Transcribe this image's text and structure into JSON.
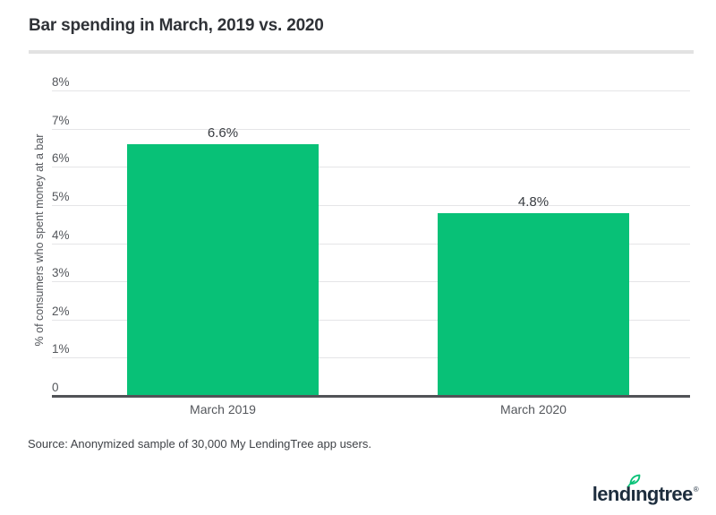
{
  "header": {
    "title": "Bar spending in March, 2019 vs. 2020"
  },
  "chart_data": {
    "type": "bar",
    "title": "Bar spending in March, 2019 vs. 2020",
    "categories": [
      "March 2019",
      "March 2020"
    ],
    "values": [
      6.6,
      4.8
    ],
    "value_labels": [
      "6.6%",
      "4.8%"
    ],
    "xlabel": "",
    "ylabel": "% of consumers who spent money at a bar",
    "ylim": [
      0,
      8
    ],
    "yticks": [
      {
        "value": 8,
        "label": "8%"
      },
      {
        "value": 7,
        "label": "7%"
      },
      {
        "value": 6,
        "label": "6%"
      },
      {
        "value": 5,
        "label": "5%"
      },
      {
        "value": 4,
        "label": "4%"
      },
      {
        "value": 3,
        "label": "3%"
      },
      {
        "value": 2,
        "label": "2%"
      },
      {
        "value": 1,
        "label": "1%"
      },
      {
        "value": 0,
        "label": "0"
      }
    ],
    "grid": "horizontal",
    "legend": "none",
    "bar_color": "#08c177"
  },
  "footer": {
    "source": "Source: Anonymized sample of 30,000 My LendingTree app users.",
    "logo": {
      "name": "lendingtree",
      "part1": "lend",
      "dotless_i": "ı",
      "part2": "ngtree",
      "registered": "®"
    }
  },
  "colors": {
    "bar_green": "#08c177",
    "logo_navy": "#1d2d3d",
    "gridline": "#e5e5e7",
    "axis_line": "#515357",
    "title_text": "#2f3237",
    "muted_text": "#54575c"
  }
}
